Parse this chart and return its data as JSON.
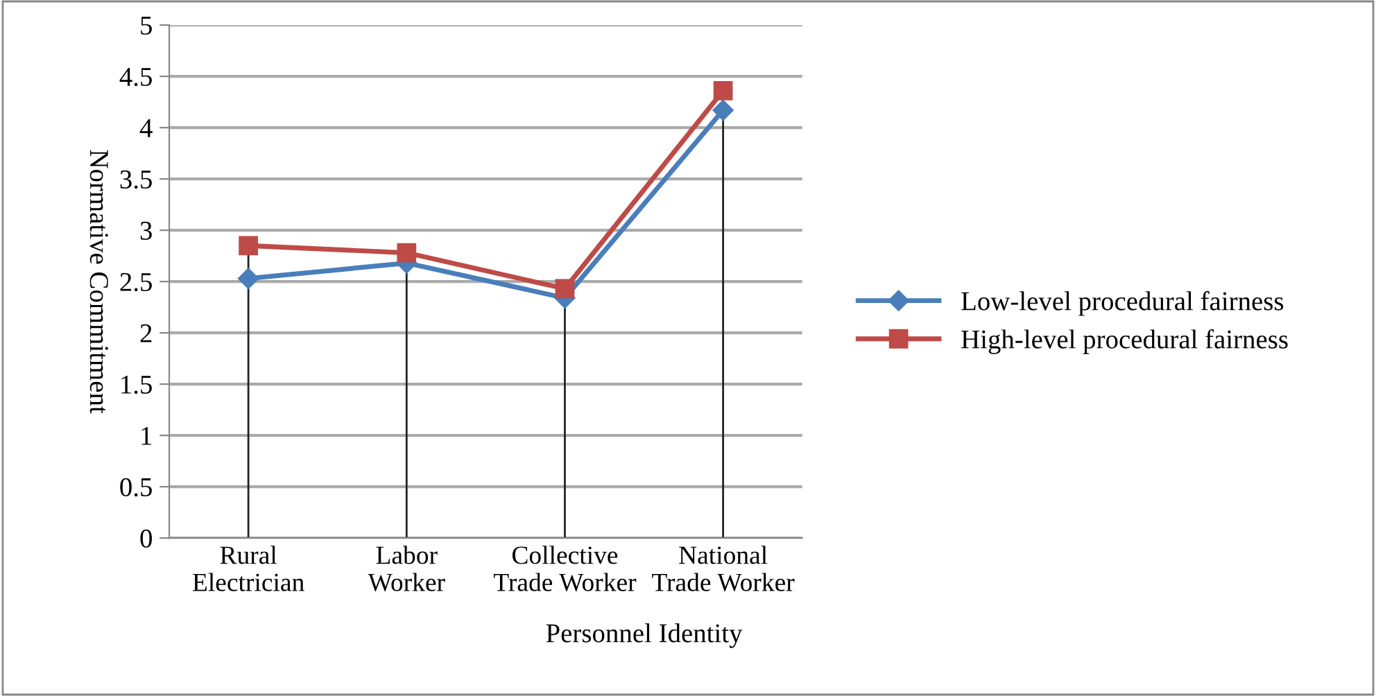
{
  "chart_data": {
    "type": "line",
    "xlabel": "Personnel Identity",
    "ylabel": "Normative Commitment",
    "categories": [
      "Rural\nElectrician",
      "Labor\nWorker",
      "Collective\nTrade Worker",
      "National\nTrade Worker"
    ],
    "series": [
      {
        "name": "Low-level procedural fairness",
        "color": "#4a7ebb",
        "marker": "diamond",
        "values": [
          2.53,
          2.68,
          2.34,
          4.17
        ]
      },
      {
        "name": "High-level procedural fairness",
        "color": "#be4b48",
        "marker": "square",
        "values": [
          2.85,
          2.78,
          2.43,
          4.36
        ],
        "errors": [
          [
            0,
            2.85
          ],
          [
            0,
            2.78
          ],
          [
            0,
            2.43
          ],
          [
            0,
            4.36
          ]
        ]
      }
    ],
    "ylim": [
      0,
      5
    ],
    "yticks": [
      0,
      0.5,
      1,
      1.5,
      2,
      2.5,
      3,
      3.5,
      4,
      4.5,
      5
    ],
    "grid": "y",
    "legend": "right"
  }
}
